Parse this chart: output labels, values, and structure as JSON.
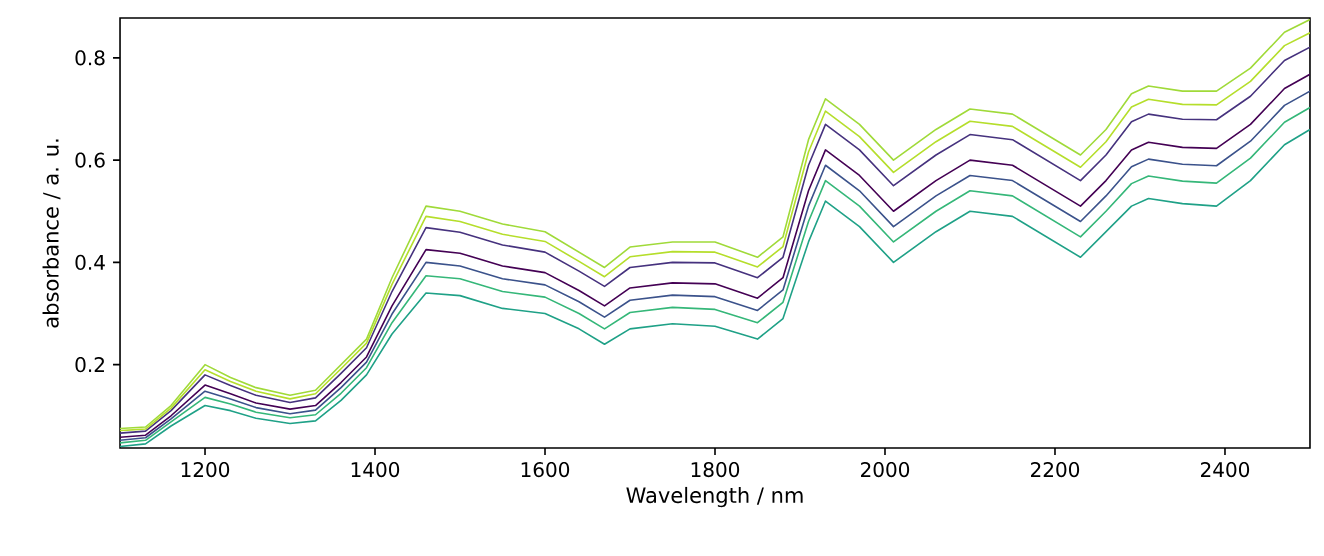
{
  "chart_data": {
    "type": "line",
    "xlabel": "Wavelength / nm",
    "ylabel": "absorbance / a. u.",
    "xlim": [
      1100,
      2500
    ],
    "ylim": [
      0.037,
      0.878
    ],
    "xticks": [
      1200,
      1400,
      1600,
      1800,
      2000,
      2200,
      2400
    ],
    "yticks": [
      0.2,
      0.4,
      0.6,
      0.8
    ],
    "x": [
      1100,
      1130,
      1160,
      1200,
      1230,
      1260,
      1300,
      1330,
      1360,
      1390,
      1420,
      1460,
      1500,
      1550,
      1600,
      1640,
      1670,
      1700,
      1750,
      1800,
      1850,
      1880,
      1910,
      1930,
      1970,
      2010,
      2060,
      2100,
      2150,
      2200,
      2230,
      2260,
      2290,
      2310,
      2350,
      2390,
      2430,
      2470,
      2500
    ],
    "series": [
      {
        "color": "#1fa187",
        "values": [
          0.04,
          0.045,
          0.08,
          0.12,
          0.11,
          0.095,
          0.085,
          0.09,
          0.13,
          0.18,
          0.26,
          0.34,
          0.335,
          0.31,
          0.3,
          0.27,
          0.24,
          0.27,
          0.28,
          0.275,
          0.25,
          0.29,
          0.44,
          0.52,
          0.47,
          0.4,
          0.46,
          0.5,
          0.49,
          0.44,
          0.41,
          0.46,
          0.51,
          0.525,
          0.515,
          0.51,
          0.56,
          0.63,
          0.66
        ]
      },
      {
        "color": "#35b779",
        "values": [
          0.047,
          0.052,
          0.088,
          0.136,
          0.123,
          0.107,
          0.096,
          0.102,
          0.144,
          0.194,
          0.282,
          0.374,
          0.368,
          0.343,
          0.332,
          0.3,
          0.27,
          0.302,
          0.312,
          0.308,
          0.282,
          0.322,
          0.48,
          0.56,
          0.51,
          0.44,
          0.5,
          0.54,
          0.53,
          0.48,
          0.45,
          0.5,
          0.554,
          0.569,
          0.559,
          0.555,
          0.604,
          0.674,
          0.703
        ]
      },
      {
        "color": "#3b528b",
        "values": [
          0.052,
          0.057,
          0.094,
          0.148,
          0.133,
          0.116,
          0.104,
          0.111,
          0.155,
          0.205,
          0.299,
          0.4,
          0.393,
          0.368,
          0.356,
          0.323,
          0.293,
          0.326,
          0.336,
          0.333,
          0.306,
          0.346,
          0.51,
          0.59,
          0.54,
          0.47,
          0.53,
          0.57,
          0.56,
          0.51,
          0.48,
          0.53,
          0.587,
          0.602,
          0.592,
          0.589,
          0.637,
          0.707,
          0.735
        ]
      },
      {
        "color": "#440154",
        "values": [
          0.058,
          0.062,
          0.1,
          0.16,
          0.143,
          0.125,
          0.113,
          0.12,
          0.165,
          0.215,
          0.315,
          0.425,
          0.418,
          0.393,
          0.38,
          0.345,
          0.315,
          0.35,
          0.36,
          0.358,
          0.33,
          0.37,
          0.54,
          0.62,
          0.57,
          0.5,
          0.56,
          0.6,
          0.59,
          0.54,
          0.51,
          0.56,
          0.62,
          0.635,
          0.625,
          0.623,
          0.67,
          0.74,
          0.768
        ]
      },
      {
        "color": "#46327e",
        "values": [
          0.066,
          0.07,
          0.11,
          0.18,
          0.159,
          0.14,
          0.126,
          0.135,
          0.183,
          0.233,
          0.343,
          0.468,
          0.459,
          0.434,
          0.42,
          0.383,
          0.353,
          0.39,
          0.4,
          0.399,
          0.37,
          0.41,
          0.59,
          0.67,
          0.62,
          0.55,
          0.61,
          0.65,
          0.64,
          0.59,
          0.56,
          0.61,
          0.675,
          0.69,
          0.68,
          0.679,
          0.725,
          0.795,
          0.821
        ]
      },
      {
        "color": "#b5de2b",
        "values": [
          0.071,
          0.074,
          0.115,
          0.19,
          0.167,
          0.148,
          0.133,
          0.143,
          0.192,
          0.242,
          0.357,
          0.49,
          0.48,
          0.455,
          0.441,
          0.402,
          0.372,
          0.411,
          0.421,
          0.42,
          0.391,
          0.431,
          0.616,
          0.696,
          0.646,
          0.576,
          0.636,
          0.676,
          0.666,
          0.616,
          0.586,
          0.636,
          0.704,
          0.719,
          0.709,
          0.708,
          0.754,
          0.824,
          0.849
        ]
      },
      {
        "color": "#a0da39",
        "values": [
          0.075,
          0.078,
          0.12,
          0.2,
          0.175,
          0.155,
          0.14,
          0.15,
          0.2,
          0.25,
          0.37,
          0.51,
          0.5,
          0.475,
          0.46,
          0.42,
          0.39,
          0.43,
          0.44,
          0.44,
          0.41,
          0.45,
          0.64,
          0.72,
          0.67,
          0.6,
          0.66,
          0.7,
          0.69,
          0.64,
          0.61,
          0.66,
          0.73,
          0.745,
          0.735,
          0.735,
          0.78,
          0.85,
          0.875
        ]
      }
    ]
  }
}
